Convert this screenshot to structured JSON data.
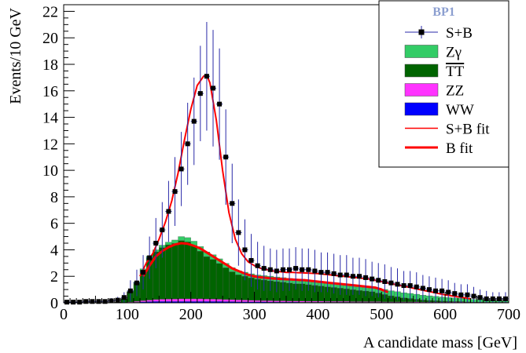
{
  "chart_data": {
    "type": "line",
    "xlabel": "A candidate mass [GeV]",
    "ylabel": "Events/10 GeV",
    "xlim": [
      0,
      700
    ],
    "ylim": [
      0,
      22.5
    ],
    "x_ticks": [
      "0",
      "100",
      "200",
      "300",
      "400",
      "500",
      "600",
      "700"
    ],
    "y_ticks": [
      "0",
      "2",
      "4",
      "6",
      "8",
      "10",
      "12",
      "14",
      "16",
      "18",
      "20",
      "22"
    ],
    "legend": {
      "title": "BP1",
      "position": "top-right",
      "entries": [
        {
          "label": "S+B",
          "kind": "points",
          "color": "#000000"
        },
        {
          "label": "Zγ",
          "kind": "fill",
          "color": "#33cc66"
        },
        {
          "label": "TT",
          "kind": "fill",
          "color": "#006400",
          "overline": true
        },
        {
          "label": "ZZ",
          "kind": "fill",
          "color": "#ff33ff"
        },
        {
          "label": "WW",
          "kind": "fill",
          "color": "#0000ff"
        },
        {
          "label": "S+B fit",
          "kind": "line",
          "color": "#ff0000"
        },
        {
          "label": "B fit",
          "kind": "line-thick",
          "color": "#ff0000"
        }
      ]
    },
    "bin_width": 10,
    "bin_centers": [
      5,
      15,
      25,
      35,
      45,
      55,
      65,
      75,
      85,
      95,
      105,
      115,
      125,
      135,
      145,
      155,
      165,
      175,
      185,
      195,
      205,
      215,
      225,
      235,
      245,
      255,
      265,
      275,
      285,
      295,
      305,
      315,
      325,
      335,
      345,
      355,
      365,
      375,
      385,
      395,
      405,
      415,
      425,
      435,
      445,
      455,
      465,
      475,
      485,
      495,
      505,
      515,
      525,
      535,
      545,
      555,
      565,
      575,
      585,
      595,
      605,
      615,
      625,
      635,
      645,
      655,
      665,
      675,
      685,
      695
    ],
    "series": [
      {
        "name": "WW",
        "color": "#0000ff",
        "values": [
          0,
          0,
          0,
          0,
          0,
          0,
          0,
          0,
          0,
          0,
          0.03,
          0.05,
          0.07,
          0.09,
          0.1,
          0.1,
          0.1,
          0.1,
          0.1,
          0.1,
          0.1,
          0.1,
          0.1,
          0.1,
          0.1,
          0.09,
          0.09,
          0.08,
          0.08,
          0.07,
          0.07,
          0.07,
          0.06,
          0.06,
          0.06,
          0.06,
          0.06,
          0.05,
          0.05,
          0.05,
          0.05,
          0.05,
          0.05,
          0.05,
          0.05,
          0.04,
          0.04,
          0.04,
          0.04,
          0.04,
          0.04,
          0.04,
          0.04,
          0.04,
          0.04,
          0.03,
          0.03,
          0.03,
          0.03,
          0.03,
          0.03,
          0.03,
          0.03,
          0.03,
          0.02,
          0.02,
          0.02,
          0.02,
          0.02,
          0.02
        ]
      },
      {
        "name": "ZZ",
        "color": "#ff33ff",
        "values": [
          0,
          0,
          0,
          0,
          0,
          0,
          0,
          0,
          0,
          0,
          0.03,
          0.06,
          0.1,
          0.12,
          0.15,
          0.17,
          0.18,
          0.19,
          0.2,
          0.2,
          0.2,
          0.2,
          0.19,
          0.18,
          0.17,
          0.16,
          0.15,
          0.14,
          0.13,
          0.12,
          0.11,
          0.1,
          0.1,
          0.09,
          0.09,
          0.08,
          0.08,
          0.08,
          0.07,
          0.07,
          0.07,
          0.06,
          0.06,
          0.06,
          0.06,
          0.05,
          0.05,
          0.05,
          0.05,
          0.05,
          0.04,
          0.04,
          0.04,
          0.04,
          0.04,
          0.04,
          0.03,
          0.03,
          0.03,
          0.03,
          0.03,
          0.03,
          0.03,
          0.02,
          0.02,
          0.02,
          0.02,
          0.02,
          0.02,
          0.02
        ]
      },
      {
        "name": "TT",
        "color": "#006400",
        "values": [
          0,
          0,
          0,
          0,
          0,
          0,
          0,
          0,
          0.05,
          0.3,
          0.8,
          1.4,
          2.3,
          3.2,
          3.6,
          3.9,
          4.1,
          4.2,
          4.4,
          4.3,
          4.0,
          3.6,
          3.2,
          3.0,
          2.7,
          2.4,
          2.1,
          1.9,
          1.8,
          1.7,
          1.6,
          1.55,
          1.5,
          1.45,
          1.4,
          1.35,
          1.3,
          1.3,
          1.25,
          1.2,
          1.15,
          1.1,
          1.05,
          1.0,
          0.95,
          0.9,
          0.85,
          0.8,
          0.75,
          0.65,
          0.55,
          0.45,
          0.38,
          0.3,
          0.25,
          0.2,
          0.16,
          0.12,
          0.1,
          0.08,
          0.06,
          0.05,
          0.04,
          0.03,
          0.02,
          0.02,
          0.01,
          0.01,
          0,
          0
        ]
      },
      {
        "name": "Zγ",
        "color": "#33cc66",
        "values": [
          0,
          0,
          0,
          0,
          0,
          0,
          0,
          0,
          0,
          0.02,
          0.05,
          0.08,
          0.1,
          0.12,
          0.15,
          0.18,
          0.2,
          0.25,
          0.3,
          0.32,
          0.35,
          0.35,
          0.35,
          0.35,
          0.35,
          0.33,
          0.32,
          0.3,
          0.3,
          0.3,
          0.32,
          0.33,
          0.35,
          0.35,
          0.35,
          0.35,
          0.35,
          0.35,
          0.34,
          0.33,
          0.32,
          0.32,
          0.32,
          0.32,
          0.33,
          0.33,
          0.34,
          0.35,
          0.35,
          0.36,
          0.38,
          0.38,
          0.38,
          0.38,
          0.38,
          0.38,
          0.36,
          0.35,
          0.33,
          0.3,
          0.28,
          0.26,
          0.24,
          0.22,
          0.2,
          0.18,
          0.16,
          0.14,
          0.12,
          0.1
        ]
      }
    ],
    "signal_plus_background": {
      "name": "S+B",
      "x": [
        5,
        15,
        25,
        35,
        45,
        55,
        65,
        75,
        85,
        95,
        105,
        115,
        125,
        135,
        145,
        155,
        165,
        175,
        185,
        195,
        205,
        215,
        225,
        235,
        245,
        255,
        265,
        275,
        285,
        295,
        305,
        315,
        325,
        335,
        345,
        355,
        365,
        375,
        385,
        395,
        405,
        415,
        425,
        435,
        445,
        455,
        465,
        475,
        485,
        495,
        505,
        515,
        525,
        535,
        545,
        555,
        565,
        575,
        585,
        595,
        605,
        615,
        625,
        635,
        645,
        655,
        665,
        675,
        685,
        695
      ],
      "y": [
        0.05,
        0.05,
        0.05,
        0.1,
        0.1,
        0.1,
        0.1,
        0.15,
        0.2,
        0.4,
        0.9,
        1.5,
        2.3,
        3.4,
        4.5,
        5.5,
        6.9,
        8.4,
        10.1,
        12.0,
        13.7,
        15.8,
        17.1,
        16.2,
        15.0,
        11.0,
        7.5,
        5.3,
        4.0,
        3.2,
        2.8,
        2.6,
        2.5,
        2.4,
        2.5,
        2.5,
        2.6,
        2.5,
        2.5,
        2.4,
        2.3,
        2.3,
        2.2,
        2.1,
        2.1,
        2.0,
        2.0,
        1.9,
        1.8,
        1.7,
        1.6,
        1.5,
        1.4,
        1.3,
        1.3,
        1.2,
        1.1,
        1.0,
        0.9,
        0.9,
        0.8,
        0.7,
        0.6,
        0.6,
        0.5,
        0.4,
        0.3,
        0.3,
        0.3,
        0.3
      ],
      "err": [
        0.1,
        0.1,
        0.1,
        0.15,
        0.15,
        0.15,
        0.15,
        0.2,
        0.25,
        0.4,
        0.8,
        1.0,
        1.3,
        1.6,
        1.9,
        2.1,
        2.3,
        2.6,
        2.8,
        3.1,
        3.3,
        3.6,
        4.1,
        4.4,
        4.2,
        3.6,
        3.0,
        2.5,
        2.3,
        2.0,
        1.8,
        1.7,
        1.6,
        1.6,
        1.6,
        1.6,
        1.6,
        1.6,
        1.6,
        1.6,
        1.5,
        1.5,
        1.5,
        1.5,
        1.5,
        1.4,
        1.4,
        1.4,
        1.3,
        1.3,
        1.3,
        1.2,
        1.2,
        1.1,
        1.1,
        1.1,
        1.0,
        1.0,
        1.0,
        0.9,
        0.9,
        0.8,
        0.8,
        0.8,
        0.7,
        0.6,
        0.6,
        0.5,
        0.5,
        0.5
      ]
    },
    "sb_fit": {
      "name": "S+B fit",
      "x": [
        120,
        130,
        140,
        150,
        160,
        170,
        180,
        190,
        200,
        210,
        220,
        225,
        230,
        240,
        250,
        260,
        270,
        280,
        290,
        300,
        310,
        320,
        330,
        340,
        350,
        360,
        380,
        400,
        420,
        440,
        460,
        480,
        500,
        520,
        540,
        560,
        580,
        600,
        620,
        640
      ],
      "y": [
        2.0,
        3.0,
        3.7,
        4.8,
        6.1,
        7.7,
        9.8,
        12.3,
        14.6,
        16.4,
        17.1,
        17.2,
        16.6,
        13.8,
        10.0,
        6.8,
        4.8,
        3.7,
        3.1,
        2.8,
        2.6,
        2.5,
        2.4,
        2.35,
        2.3,
        2.3,
        2.25,
        2.2,
        2.1,
        2.0,
        1.9,
        1.8,
        1.6,
        1.4,
        1.2,
        1.0,
        0.8,
        0.6,
        0.45,
        0.3
      ]
    },
    "b_fit": {
      "name": "B fit",
      "x": [
        125,
        135,
        145,
        155,
        165,
        175,
        185,
        195,
        205,
        215,
        225,
        235,
        245,
        255,
        265,
        275,
        285,
        295,
        305,
        315,
        325,
        340,
        360,
        380,
        400,
        420,
        440,
        460,
        480,
        490,
        500,
        510
      ],
      "y": [
        2.0,
        2.8,
        3.5,
        3.9,
        4.2,
        4.4,
        4.5,
        4.45,
        4.3,
        4.1,
        3.8,
        3.5,
        3.2,
        2.9,
        2.6,
        2.4,
        2.2,
        2.05,
        1.95,
        1.9,
        1.85,
        1.8,
        1.75,
        1.7,
        1.6,
        1.5,
        1.4,
        1.3,
        1.2,
        1.15,
        1.0,
        0.8
      ]
    }
  }
}
